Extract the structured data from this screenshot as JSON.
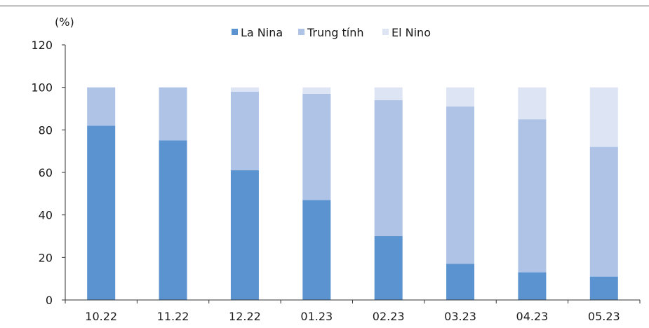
{
  "chart_data": {
    "type": "bar",
    "stacked": true,
    "unit_label": "(%)",
    "categories": [
      "10.22",
      "11.22",
      "12.22",
      "01.23",
      "02.23",
      "03.23",
      "04.23",
      "05.23"
    ],
    "series": [
      {
        "name": "La Nina",
        "color": "#5b93d0",
        "values": [
          82,
          75,
          61,
          47,
          30,
          17,
          13,
          11
        ]
      },
      {
        "name": "Trung tính",
        "color": "#aec3e6",
        "values": [
          18,
          25,
          37,
          50,
          64,
          74,
          72,
          61
        ]
      },
      {
        "name": "El Nino",
        "color": "#dde5f5",
        "values": [
          0,
          0,
          2,
          3,
          6,
          9,
          15,
          28
        ]
      }
    ],
    "ylim": [
      0,
      120
    ],
    "yticks": [
      0,
      20,
      40,
      60,
      80,
      100,
      120
    ],
    "legend_position": "top",
    "grid": false
  }
}
